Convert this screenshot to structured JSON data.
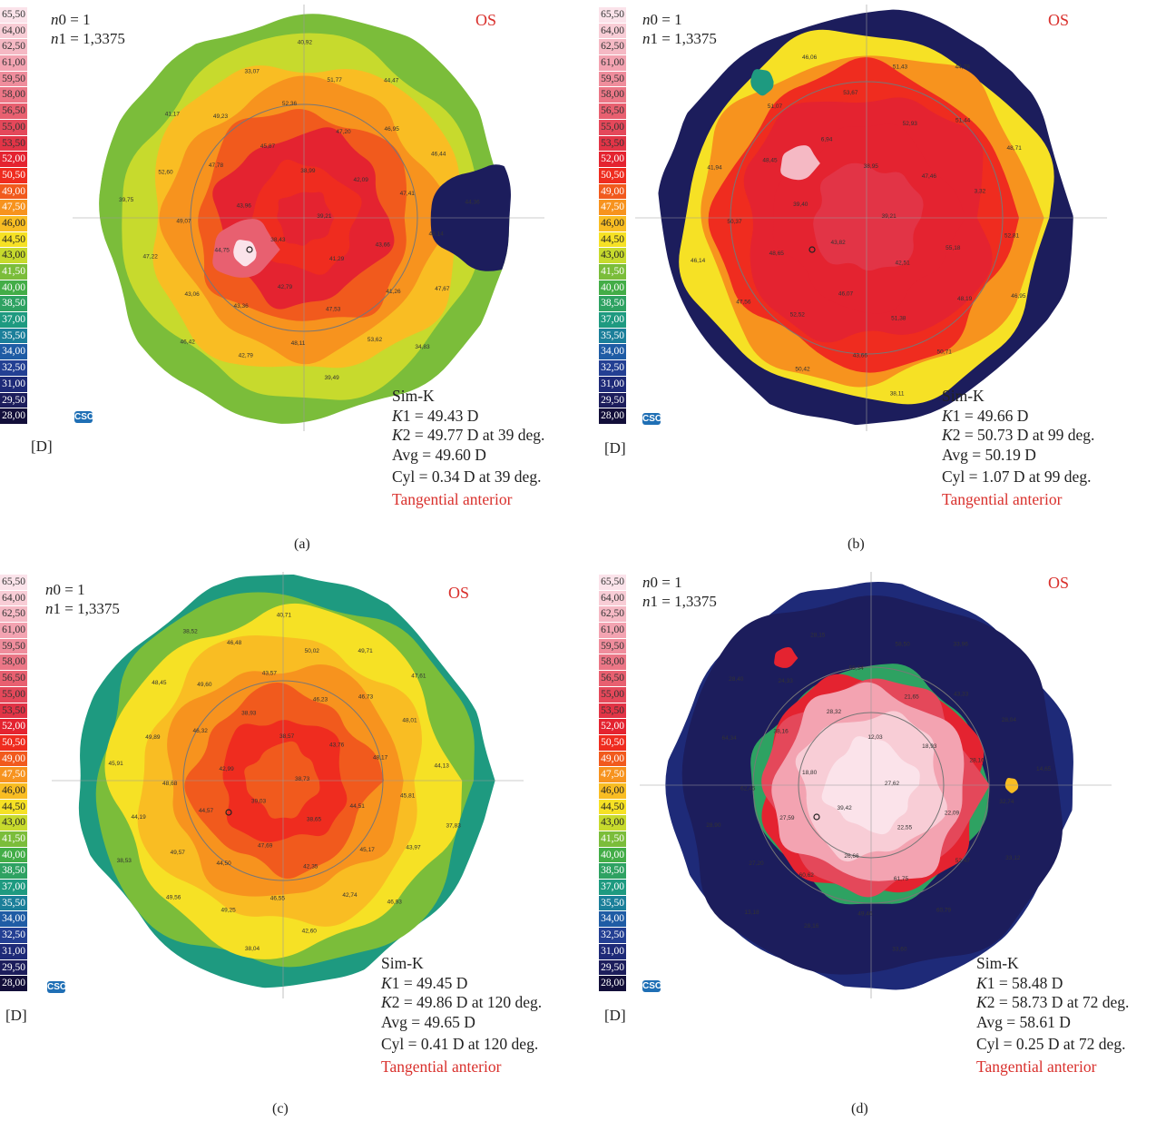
{
  "scale": {
    "values": [
      "65,50",
      "64,00",
      "62,50",
      "61,00",
      "59,50",
      "58,00",
      "56,50",
      "55,00",
      "53,50",
      "52,00",
      "50,50",
      "49,00",
      "47,50",
      "46,00",
      "44,50",
      "43,00",
      "41,50",
      "40,00",
      "38,50",
      "37,00",
      "35,50",
      "34,00",
      "32,50",
      "31,00",
      "29,50",
      "28,00"
    ],
    "colors": [
      "#fbe3ea",
      "#f8cdd6",
      "#f5b9c4",
      "#f3a3b1",
      "#ef8d9c",
      "#eb7686",
      "#e86070",
      "#e4485a",
      "#e23446",
      "#e42330",
      "#ef2c1f",
      "#f15a1d",
      "#f7931e",
      "#f9bd23",
      "#f6e125",
      "#c7da2d",
      "#7bbd3a",
      "#43ad47",
      "#2ea262",
      "#1e9a80",
      "#1b7f9a",
      "#1f5ca5",
      "#233f93",
      "#1e2a78",
      "#1c1d5c",
      "#130f3a"
    ],
    "unit": "[D]",
    "logo": "CSO"
  },
  "panels": [
    {
      "caption": "(a)",
      "eye": "OS",
      "n0_label": "n",
      "n0_sub": "0",
      "n0_value": " = 1",
      "n1_label": "n",
      "n1_sub": "1",
      "n1_value": " = 1,3375",
      "simk_title": "Sim-K",
      "k1_label": "K",
      "k1_sub": "1",
      "k1_value": " = 49.43 D",
      "k2_label": "K",
      "k2_sub": "2",
      "k2_value": " = 49.77 D at 39 deg.",
      "avg": "Avg = 49.60 D",
      "cyl": "Cyl = 0.34 D at 39 deg.",
      "mode": "Tangential anterior",
      "map_labels": [
        "39,21",
        "38,43",
        "38,99",
        "41,29",
        "43,96",
        "42,09",
        "42,79",
        "45,87",
        "43,66",
        "44,75",
        "47,20",
        "47,53",
        "47,78",
        "47,41",
        "43,36",
        "52,36",
        "41,26",
        "49,07",
        "46,95",
        "48,11",
        "49,23",
        "48,14",
        "43,06",
        "51,77",
        "53,62",
        "52,60",
        "46,44",
        "42,79",
        "33,07",
        "47,67",
        "47,22",
        "44,47",
        "39,49",
        "41,17",
        "44,36",
        "46,42",
        "40,92",
        "34,83",
        "39,75"
      ]
    },
    {
      "caption": "(b)",
      "eye": "OS",
      "n0_label": "n",
      "n0_sub": "0",
      "n0_value": " = 1",
      "n1_label": "n",
      "n1_sub": "1",
      "n1_value": " = 1,3375",
      "simk_title": "Sim-K",
      "k1_label": "K",
      "k1_sub": "1",
      "k1_value": " = 49.66 D",
      "k2_label": "K",
      "k2_sub": "2",
      "k2_value": " = 50.73 D at 99 deg.",
      "avg": "Avg = 50.19 D",
      "cyl": "Cyl = 1.07 D at 99 deg.",
      "mode": "Tangential anterior",
      "map_labels": [
        "39,21",
        "43,82",
        "38,95",
        "42,51",
        "39,40",
        "47,46",
        "46,07",
        "6,94",
        "55,18",
        "48,65",
        "52,93",
        "51,38",
        "48,45",
        "3,32",
        "52,52",
        "53,67",
        "48,19",
        "50,37",
        "51,44",
        "43,66",
        "51,07",
        "52,81",
        "47,56",
        "51,43",
        "50,71",
        "41,94",
        "48,71",
        "50,42",
        "46,06",
        "46,95",
        "46,14",
        "44,78",
        "38,11"
      ]
    },
    {
      "caption": "(c)",
      "eye": "OS",
      "n0_label": "n",
      "n0_sub": "0",
      "n0_value": " = 1",
      "n1_label": "n",
      "n1_sub": "1",
      "n1_value": " = 1,3375",
      "simk_title": "Sim-K",
      "k1_label": "K",
      "k1_sub": "1",
      "k1_value": " = 49.45 D",
      "k2_label": "K",
      "k2_sub": "2",
      "k2_value": " = 49.86 D at 120 deg.",
      "avg": "Avg = 49.65 D",
      "cyl": "Cyl = 0.41 D at 120 deg.",
      "mode": "Tangential anterior",
      "map_labels": [
        "38,73",
        "39,03",
        "38,57",
        "38,65",
        "42,99",
        "43,76",
        "47,69",
        "38,93",
        "44,51",
        "44,57",
        "46,23",
        "42,35",
        "46,32",
        "48,17",
        "44,50",
        "43,57",
        "45,17",
        "48,68",
        "46,73",
        "46,55",
        "49,60",
        "45,81",
        "49,57",
        "50,02",
        "42,74",
        "49,89",
        "48,01",
        "49,25",
        "46,48",
        "43,97",
        "44,19",
        "49,71",
        "42,60",
        "48,45",
        "44,13",
        "49,56",
        "40,71",
        "46,93",
        "45,91",
        "47,61",
        "38,04",
        "38,52",
        "37,83",
        "38,53"
      ]
    },
    {
      "caption": "(d)",
      "eye": "OS",
      "n0_label": "n",
      "n0_sub": "0",
      "n0_value": " = 1",
      "n1_label": "n",
      "n1_sub": "1",
      "n1_value": " = 1,3375",
      "simk_title": "Sim-K",
      "k1_label": "K",
      "k1_sub": "1",
      "k1_value": " = 58.48 D",
      "k2_label": "K",
      "k2_sub": "2",
      "k2_value": " = 58.73 D at 72 deg.",
      "avg": "Avg = 58.61 D",
      "cyl": "Cyl = 0.25 D at 72 deg.",
      "mode": "Tangential anterior",
      "map_labels": [
        "27,62",
        "39,42",
        "12,03",
        "22,55",
        "18,80",
        "18,93",
        "26,66",
        "28,32",
        "22,09",
        "27,59",
        "21,65",
        "61,75",
        "38,16",
        "28,16",
        "60,62",
        "56,34",
        "52,47",
        "62,45",
        "43,33",
        "49,46",
        "24,33",
        "32,74",
        "27,20",
        "58,50",
        "60,79",
        "64,34",
        "28,04",
        "28,16",
        "28,15",
        "33,12",
        "28,90",
        "33,96",
        "33,60",
        "28,40",
        "14,65",
        "13,18"
      ]
    }
  ]
}
